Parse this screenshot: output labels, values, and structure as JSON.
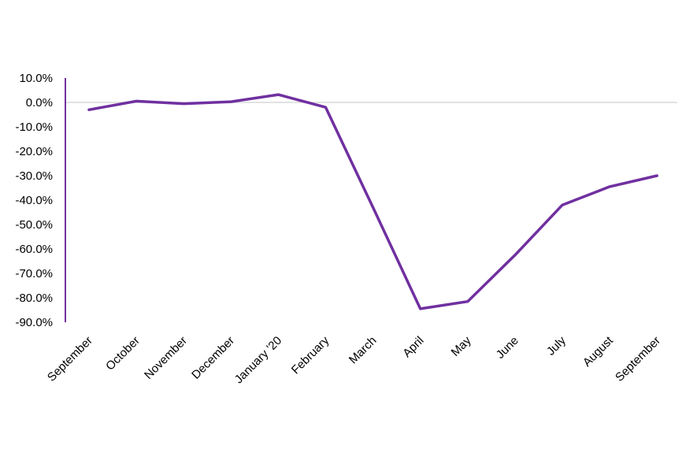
{
  "chart_data": {
    "type": "line",
    "title": "",
    "xlabel": "",
    "ylabel": "",
    "categories": [
      "September",
      "October",
      "November",
      "December",
      "January '20",
      "February",
      "March",
      "April",
      "May",
      "June",
      "July",
      "August",
      "September"
    ],
    "series": [
      {
        "values": [
          -3.0,
          0.5,
          -0.5,
          0.3,
          3.2,
          -2.0,
          -43.0,
          -84.5,
          -81.5,
          -62.5,
          -42.0,
          -34.5,
          -30.0
        ],
        "color": "#7030a0"
      }
    ],
    "yticks": [
      "10.0%",
      "0.0%",
      "-10.0%",
      "-20.0%",
      "-30.0%",
      "-40.0%",
      "-50.0%",
      "-60.0%",
      "-70.0%",
      "-80.0%",
      "-90.0%"
    ],
    "ylim": [
      -90,
      10
    ],
    "grid": false,
    "legend": "none",
    "colors": {
      "axis": "#7030a0",
      "zero_line": "#d9d9d9",
      "line": "#7030a0"
    }
  }
}
